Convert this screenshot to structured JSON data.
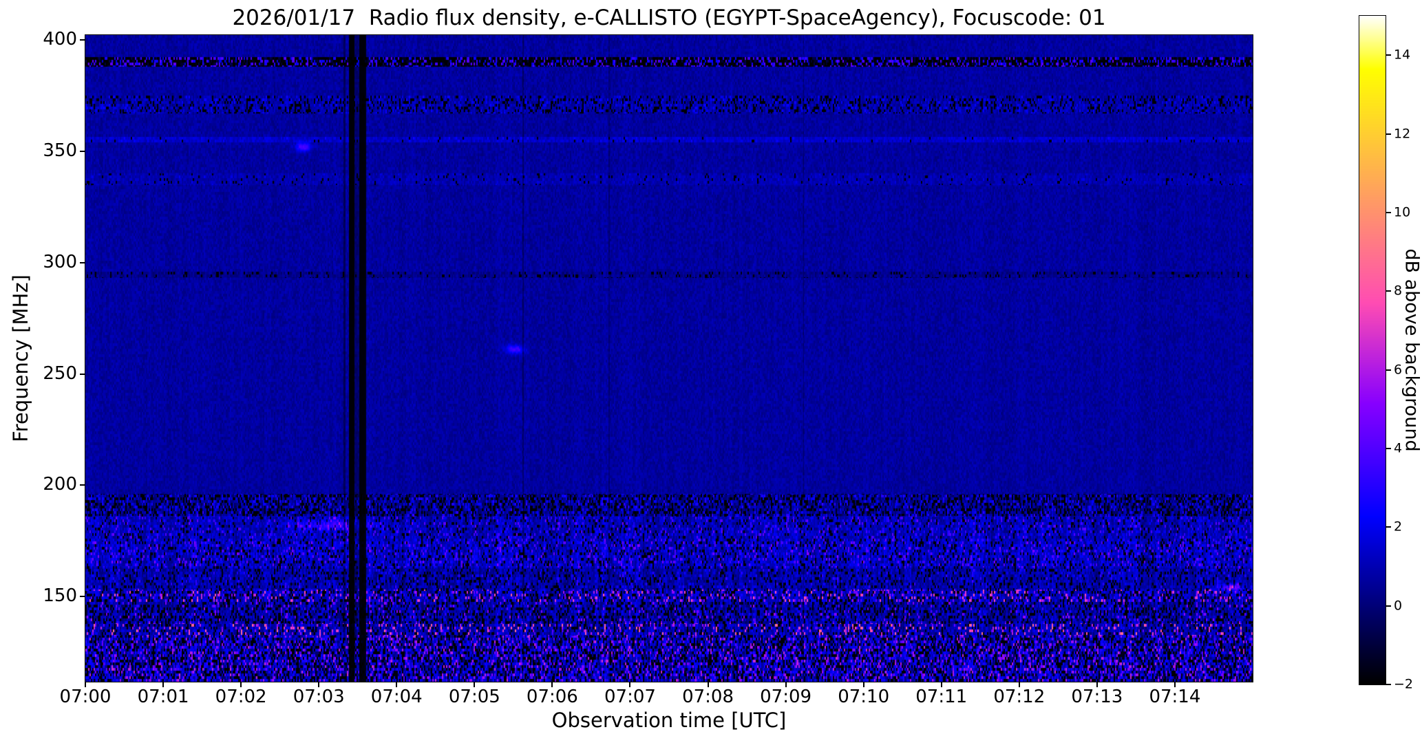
{
  "chart_data": {
    "type": "heatmap",
    "title": "2026/01/17  Radio flux density, e-CALLISTO (EGYPT-SpaceAgency), Focuscode: 01",
    "xlabel": "Observation time [UTC]",
    "ylabel": "Frequency [MHz]",
    "colorbar_label": "dB above background",
    "x_ticks": [
      "07:00",
      "07:01",
      "07:02",
      "07:03",
      "07:04",
      "07:05",
      "07:06",
      "07:07",
      "07:08",
      "07:09",
      "07:10",
      "07:11",
      "07:12",
      "07:13",
      "07:14"
    ],
    "xlim_minutes": [
      0,
      15
    ],
    "y_ticks": [
      150,
      200,
      250,
      300,
      350,
      400
    ],
    "ylim": [
      111.8,
      402.1
    ],
    "colorbar_ticks": [
      -2,
      0,
      2,
      4,
      6,
      8,
      10,
      12,
      14
    ],
    "clim": [
      -2,
      15
    ],
    "colormap": "gnuplot2",
    "grid": false,
    "texture": {
      "background": {
        "mean": 0.65,
        "noise": 0.45,
        "col_var": 0.12,
        "col_var_low": 0.45,
        "stripe_threshold": 192
      },
      "bands": [
        {
          "f0": 388,
          "f1": 392.5,
          "base": -1.2,
          "noise": 0.6,
          "dark_p": 0.45,
          "speckle_p": 0.3,
          "sp_lo": 1.5,
          "sp_hi": 4.5
        },
        {
          "f0": 367,
          "f1": 375,
          "base": 0.8,
          "noise": 0.7,
          "dark_p": 0.2,
          "speckle_p": 0.15,
          "sp_lo": 1.2,
          "sp_hi": 2.6
        },
        {
          "f0": 354,
          "f1": 356.5,
          "base": 1.4,
          "noise": 0.5,
          "dark_p": 0.04,
          "speckle_p": 0.06,
          "sp_lo": 1.5,
          "sp_hi": 2.6
        },
        {
          "f0": 335,
          "f1": 340,
          "base": 0.95,
          "noise": 0.5,
          "dark_p": 0.05,
          "speckle_p": 0.04,
          "sp_lo": 1.2,
          "sp_hi": 2.0
        },
        {
          "f0": 293,
          "f1": 296,
          "base": 0.35,
          "noise": 0.5,
          "dark_p": 0.12,
          "speckle_p": 0.0,
          "sp_lo": 0,
          "sp_hi": 0
        },
        {
          "f0": 186,
          "f1": 196,
          "base": 0.45,
          "noise": 0.9,
          "dark_p": 0.3,
          "speckle_p": 0.16,
          "sp_lo": 1.5,
          "sp_hi": 3.2
        },
        {
          "f0": 175,
          "f1": 186,
          "base": 1.1,
          "noise": 0.8,
          "dark_p": 0.12,
          "speckle_p": 0.12,
          "sp_lo": 2.0,
          "sp_hi": 4.5
        },
        {
          "f0": 163,
          "f1": 175,
          "base": 1.3,
          "noise": 0.9,
          "dark_p": 0.15,
          "speckle_p": 0.15,
          "sp_lo": 2.0,
          "sp_hi": 5.0
        },
        {
          "f0": 153,
          "f1": 163,
          "base": 0.9,
          "noise": 0.8,
          "dark_p": 0.15,
          "speckle_p": 0.08,
          "sp_lo": 1.5,
          "sp_hi": 3.5
        },
        {
          "f0": 147.5,
          "f1": 153,
          "base": 1.3,
          "noise": 1.0,
          "dark_p": 0.22,
          "speckle_p": 0.17,
          "sp_lo": 3.0,
          "sp_hi": 8.0
        },
        {
          "f0": 138,
          "f1": 147.5,
          "base": 0.9,
          "noise": 1.0,
          "dark_p": 0.25,
          "speckle_p": 0.08,
          "sp_lo": 2.0,
          "sp_hi": 5.5
        },
        {
          "f0": 132.5,
          "f1": 138,
          "base": 1.1,
          "noise": 1.0,
          "dark_p": 0.16,
          "speckle_p": 0.13,
          "sp_lo": 4.0,
          "sp_hi": 9.0
        },
        {
          "f0": 110,
          "f1": 132.5,
          "base": 1.2,
          "noise": 1.4,
          "dark_p": 0.28,
          "speckle_p": 0.2,
          "sp_lo": 2.0,
          "sp_hi": 6.5
        }
      ],
      "v_stripes": [
        {
          "t": 3.33,
          "w": 0.03,
          "alpha": 0.45
        },
        {
          "t": 3.42,
          "w": 0.07,
          "alpha": 0.93
        },
        {
          "t": 3.49,
          "w": 0.2,
          "alpha": 0.3
        },
        {
          "t": 3.56,
          "w": 0.09,
          "alpha": 0.9
        },
        {
          "t": 5.62,
          "w": 0.018,
          "alpha": 0.35
        },
        {
          "t": 6.73,
          "w": 0.014,
          "alpha": 0.22
        },
        {
          "t": 9.23,
          "w": 0.016,
          "alpha": 0.28
        }
      ],
      "blobs": [
        {
          "t": 2.8,
          "f": 352,
          "db": 3.2,
          "wt": 0.1,
          "wf": 2.0
        },
        {
          "t": 5.52,
          "f": 261,
          "db": 3.0,
          "wt": 0.12,
          "wf": 2.0
        },
        {
          "t": 3.15,
          "f": 182,
          "db": 2.2,
          "wt": 0.5,
          "wf": 2.5
        },
        {
          "t": 14.72,
          "f": 154,
          "db": 4.5,
          "wt": 0.15,
          "wf": 1.5
        }
      ]
    }
  }
}
